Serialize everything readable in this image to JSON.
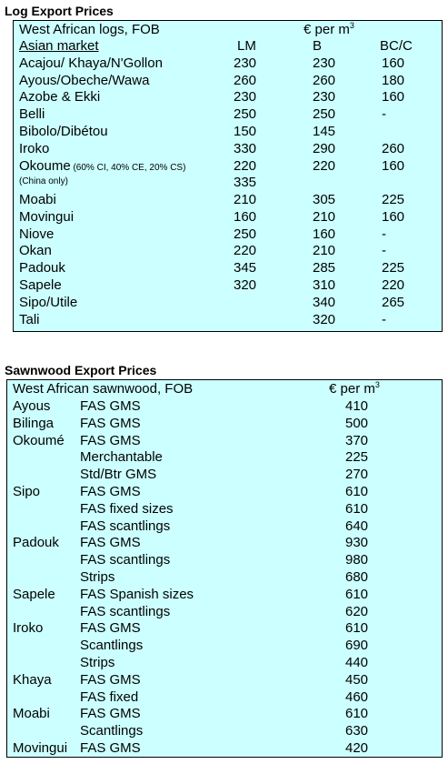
{
  "log_table": {
    "title": "Log Export Prices",
    "header_left": "West African logs, FOB",
    "header_unit_prefix": "€ per m",
    "header_unit_sup": "3",
    "market": "Asian market",
    "col_lm": "LM",
    "col_b": "B",
    "col_bcc": "BC/C",
    "rows": [
      {
        "name": "Acajou/ Khaya/N'Gollon",
        "lm": "230",
        "b": "230",
        "bcc": "160"
      },
      {
        "name": "Ayous/Obeche/Wawa",
        "lm": "260",
        "b": "260",
        "bcc": "180"
      },
      {
        "name": "Azobe & Ekki",
        "lm": "230",
        "b": "230",
        "bcc": "160"
      },
      {
        "name": "Belli",
        "lm": "250",
        "b": "250",
        "bcc": "-"
      },
      {
        "name": "Bibolo/Dibétou",
        "lm": "150",
        "b": "145",
        "bcc": ""
      },
      {
        "name": "Iroko",
        "lm": "330",
        "b": "290",
        "bcc": "260"
      },
      {
        "name": "Okoume",
        "name_note": "(60% CI, 40% CE, 20% CS)",
        "lm": "220",
        "b": "220",
        "bcc": "160"
      },
      {
        "name": "(China only)",
        "lm": "335",
        "b": "",
        "bcc": ""
      },
      {
        "name": "Moabi",
        "lm": "210",
        "b": "305",
        "bcc": "225"
      },
      {
        "name": "Movingui",
        "lm": "160",
        "b": "210",
        "bcc": "160"
      },
      {
        "name": "Niove",
        "lm": "250",
        "b": "160",
        "bcc": "-"
      },
      {
        "name": "Okan",
        "lm": "220",
        "b": "210",
        "bcc": "-"
      },
      {
        "name": "Padouk",
        "lm": "345",
        "b": "285",
        "bcc": "225"
      },
      {
        "name": "Sapele",
        "lm": "320",
        "b": "310",
        "bcc": "220"
      },
      {
        "name": "Sipo/Utile",
        "lm": "",
        "b": "340",
        "bcc": "265"
      },
      {
        "name": "Tali",
        "lm": "",
        "b": "320",
        "bcc": "-"
      }
    ]
  },
  "sawn_table": {
    "title": "Sawnwood Export Prices",
    "header_left": "West African sawnwood, FOB",
    "header_unit_prefix": "€ per m",
    "header_unit_sup": "3",
    "rows": [
      {
        "species": "Ayous",
        "grade": "FAS GMS",
        "price": "410"
      },
      {
        "species": "Bilinga",
        "grade": "FAS GMS",
        "price": "500"
      },
      {
        "species": "Okoumé",
        "grade": "FAS GMS",
        "price": "370"
      },
      {
        "species": "",
        "grade": "Merchantable",
        "price": "225"
      },
      {
        "species": "",
        "grade": "Std/Btr GMS",
        "price": "270"
      },
      {
        "species": "Sipo",
        "grade": "FAS GMS",
        "price": "610"
      },
      {
        "species": "",
        "grade": "FAS fixed sizes",
        "price": "610"
      },
      {
        "species": "",
        "grade": "FAS scantlings",
        "price": "640"
      },
      {
        "species": "Padouk",
        "grade": "FAS GMS",
        "price": "930"
      },
      {
        "species": "",
        "grade": "FAS scantlings",
        "price": "980"
      },
      {
        "species": "",
        "grade": "Strips",
        "price": "680"
      },
      {
        "species": "Sapele",
        "grade": "FAS Spanish sizes",
        "price": "610"
      },
      {
        "species": "",
        "grade": "FAS scantlings",
        "price": "620"
      },
      {
        "species": "Iroko",
        "grade": "FAS GMS",
        "price": "610"
      },
      {
        "species": "",
        "grade": "Scantlings",
        "price": "690"
      },
      {
        "species": "",
        "grade": "Strips",
        "price": "440"
      },
      {
        "species": "Khaya",
        "grade": "FAS GMS",
        "price": "450"
      },
      {
        "species": "",
        "grade": "FAS fixed",
        "price": "460"
      },
      {
        "species": "Moabi",
        "grade": "FAS GMS",
        "price": "610"
      },
      {
        "species": "",
        "grade": "Scantlings",
        "price": "630"
      },
      {
        "species": "Movingui",
        "grade": "FAS GMS",
        "price": "420"
      }
    ]
  }
}
